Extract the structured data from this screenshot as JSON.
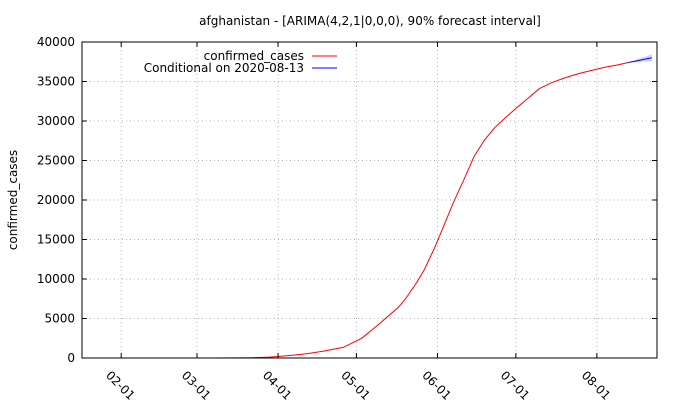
{
  "chart_data": {
    "type": "line",
    "title": "afghanistan -  [ARIMA(4,2,1|0,0,0), 90% forecast interval]",
    "ylabel": "confirmed_cases",
    "xlabel": "",
    "ylim": [
      0,
      40000
    ],
    "xlim": [
      "2020-01-17",
      "2020-08-24"
    ],
    "y_ticks": [
      0,
      5000,
      10000,
      15000,
      20000,
      25000,
      30000,
      35000,
      40000
    ],
    "x_ticks": [
      {
        "date": "2020-02-01",
        "label": "02-01"
      },
      {
        "date": "2020-03-01",
        "label": "03-01"
      },
      {
        "date": "2020-04-01",
        "label": "04-01"
      },
      {
        "date": "2020-05-01",
        "label": "05-01"
      },
      {
        "date": "2020-06-01",
        "label": "06-01"
      },
      {
        "date": "2020-07-01",
        "label": "07-01"
      },
      {
        "date": "2020-08-01",
        "label": "08-01"
      }
    ],
    "grid": true,
    "legend_position": "top-left",
    "series": [
      {
        "name": "confirmed_cases",
        "color": "#ff0000",
        "points": [
          [
            "2020-02-24",
            1
          ],
          [
            "2020-03-07",
            1
          ],
          [
            "2020-03-15",
            16
          ],
          [
            "2020-03-22",
            40
          ],
          [
            "2020-03-29",
            120
          ],
          [
            "2020-04-05",
            300
          ],
          [
            "2020-04-12",
            550
          ],
          [
            "2020-04-19",
            900
          ],
          [
            "2020-04-26",
            1350
          ],
          [
            "2020-05-03",
            2500
          ],
          [
            "2020-05-10",
            4400
          ],
          [
            "2020-05-17",
            6400
          ],
          [
            "2020-05-20",
            7600
          ],
          [
            "2020-05-24",
            9500
          ],
          [
            "2020-05-27",
            11200
          ],
          [
            "2020-05-31",
            14000
          ],
          [
            "2020-06-03",
            16400
          ],
          [
            "2020-06-07",
            19600
          ],
          [
            "2020-06-11",
            22500
          ],
          [
            "2020-06-15",
            25500
          ],
          [
            "2020-06-19",
            27600
          ],
          [
            "2020-06-23",
            29200
          ],
          [
            "2020-06-27",
            30400
          ],
          [
            "2020-07-01",
            31600
          ],
          [
            "2020-07-05",
            32700
          ],
          [
            "2020-07-10",
            34100
          ],
          [
            "2020-07-15",
            34900
          ],
          [
            "2020-07-20",
            35500
          ],
          [
            "2020-07-25",
            36000
          ],
          [
            "2020-07-30",
            36400
          ],
          [
            "2020-08-04",
            36800
          ],
          [
            "2020-08-09",
            37100
          ],
          [
            "2020-08-13",
            37400
          ]
        ]
      },
      {
        "name": "Conditional on 2020-08-13",
        "color": "#0000ff",
        "points": [
          [
            "2020-08-13",
            37400
          ],
          [
            "2020-08-16",
            37600
          ],
          [
            "2020-08-19",
            37800
          ],
          [
            "2020-08-22",
            38000
          ]
        ],
        "interval": {
          "label": "90% forecast interval",
          "color": "#c8c8ff",
          "lower": [
            37400,
            37420,
            37500,
            37550
          ],
          "upper": [
            37400,
            37780,
            38100,
            38450
          ]
        }
      }
    ]
  }
}
